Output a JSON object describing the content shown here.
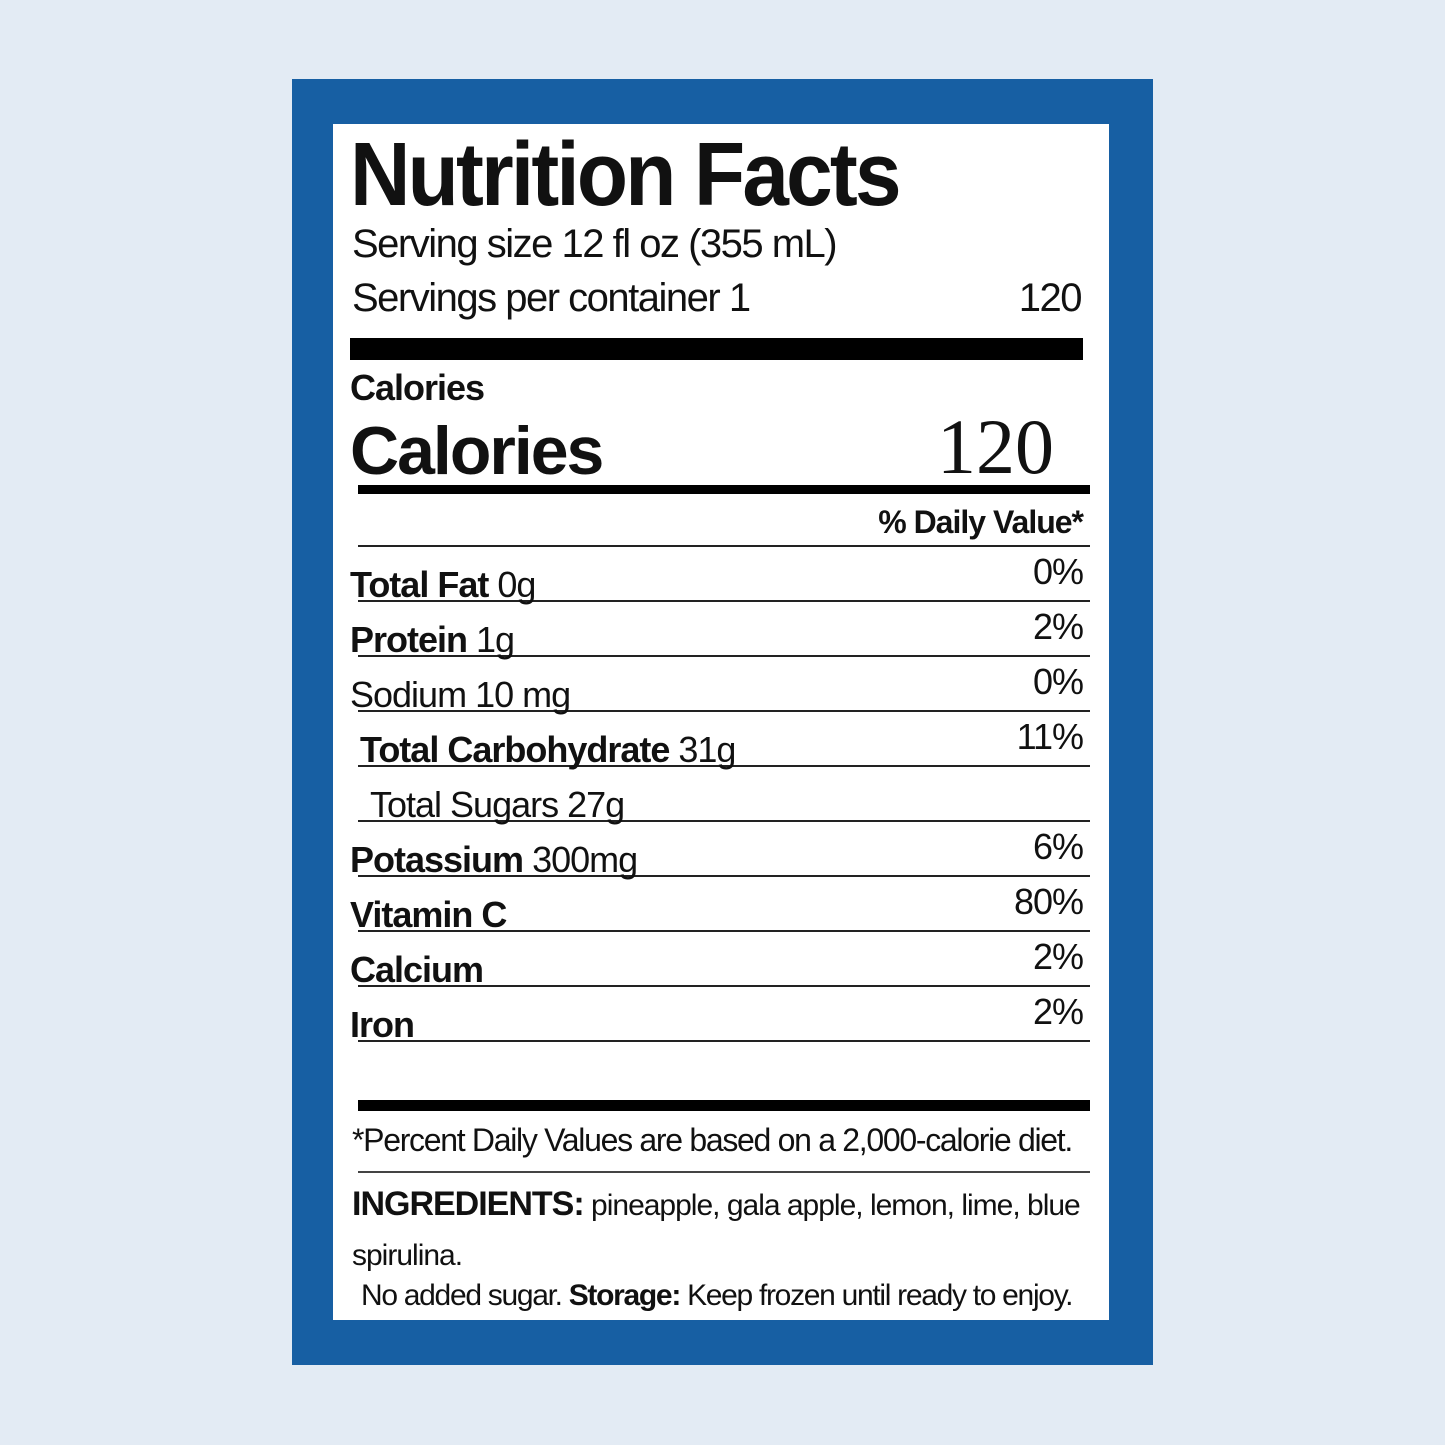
{
  "header": {
    "title": "Nutrition Facts",
    "serving_size": "Serving size 12 fl oz (355 mL)",
    "servings_per_container": "Servings per container 1",
    "servings_value": "120"
  },
  "calories": {
    "small_label": "Calories",
    "label": "Calories",
    "value": "120"
  },
  "daily_value_heading": "% Daily Value*",
  "nutrients": [
    {
      "name": "Total Fat",
      "amount": "0g",
      "dv": "0%",
      "bold": true
    },
    {
      "name": "Protein",
      "amount": "1g",
      "dv": "2%",
      "bold": true
    },
    {
      "name": "Sodium",
      "amount": "10 mg",
      "dv": "0%",
      "bold": false
    },
    {
      "name": "Total Carbohydrate",
      "amount": "31g",
      "dv": "11%",
      "bold": true
    },
    {
      "name": "Total Sugars",
      "amount": "27g",
      "bold": false
    },
    {
      "name": "Potassium",
      "amount": "300mg",
      "dv": "6%",
      "bold": true
    },
    {
      "name": "Vitamin C",
      "dv": "80%",
      "bold": true
    },
    {
      "name": "Calcium",
      "dv": "2%",
      "bold": true
    },
    {
      "name": "Iron",
      "dv": "2%",
      "bold": true
    }
  ],
  "footnote": "*Percent Daily Values are based on a 2,000-calorie diet.",
  "ingredients": {
    "label": "INGREDIENTS:",
    "text": "pineapple, gala apple, lemon, lime, blue spirulina."
  },
  "storage": {
    "note": "No added sugar.",
    "label": "Storage:",
    "text": "Keep frozen until ready to enjoy."
  }
}
